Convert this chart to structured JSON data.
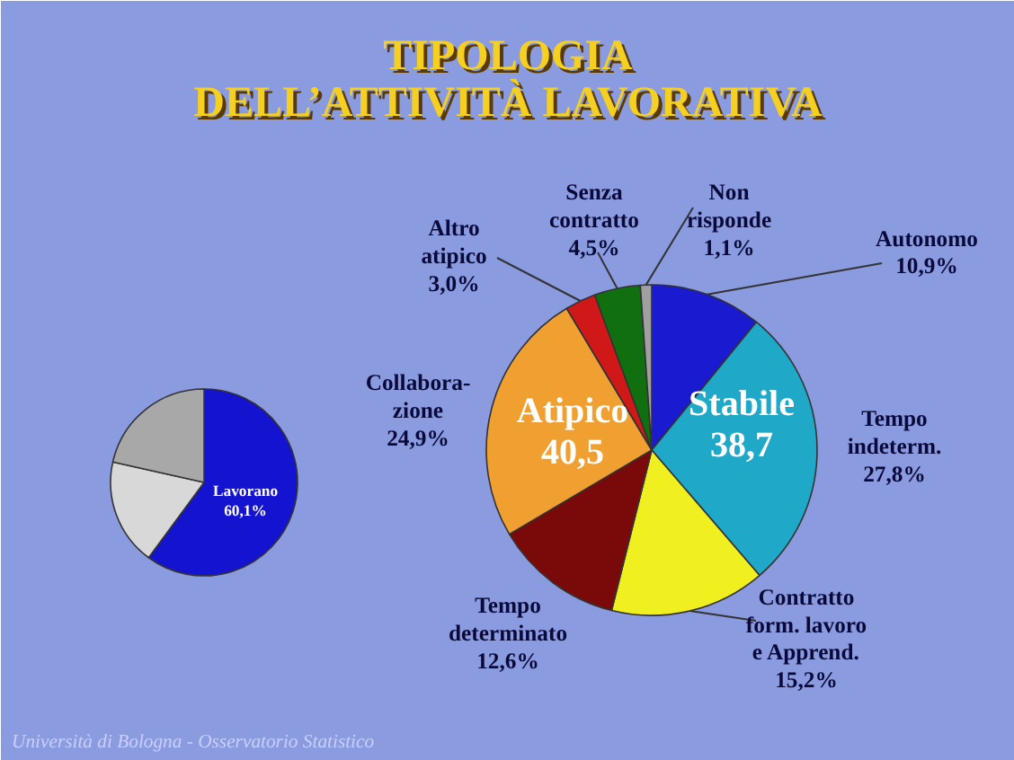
{
  "chart_data": [
    {
      "type": "pie",
      "categories": [
        "Lavorano",
        null,
        null
      ],
      "values": [
        60.1,
        18.4,
        21.5
      ],
      "value_labels": [
        "60,1%",
        null,
        null
      ],
      "colors": [
        "#1414d0",
        "#d8d8d8",
        "#a8a8a8"
      ]
    },
    {
      "type": "pie",
      "title": "TIPOLOGIA\nDELL’ATTIVITÀ LAVORATIVA",
      "categories": [
        "Autonomo",
        "Tempo\nindeterm.",
        "Contratto\nform. lavoro\ne Apprend.",
        "Tempo\ndeterminato",
        "Collabora-\nzione",
        "Altro\natipico",
        "Senza\ncontratto",
        "Non\nrisponde"
      ],
      "values": [
        10.9,
        27.8,
        15.2,
        12.6,
        24.9,
        3.0,
        4.5,
        1.1
      ],
      "value_labels": [
        "10,9%",
        "27,8%",
        "15,2%",
        "12,6%",
        "24,9%",
        "3,0%",
        "4,5%",
        "1,1%"
      ],
      "colors": [
        "#1a1ad0",
        "#1fa8c8",
        "#f0f020",
        "#7a0a0a",
        "#f0a030",
        "#d01818",
        "#107010",
        "#a0a0a0"
      ],
      "annotations": [
        "Stabile\n38,7",
        "Atipico\n40,5",
        "Università di Bologna - Osservatorio Statistico"
      ]
    }
  ]
}
